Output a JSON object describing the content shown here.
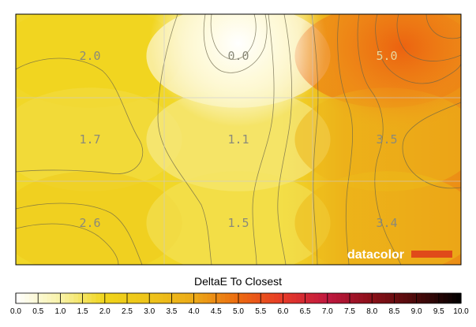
{
  "chart_data": {
    "type": "heatmap",
    "title": "DeltaE To Closest",
    "rows": 3,
    "cols": 3,
    "values": [
      [
        2.0,
        0.0,
        5.0
      ],
      [
        1.7,
        1.1,
        3.5
      ],
      [
        2.6,
        1.5,
        3.4
      ]
    ],
    "labels": [
      [
        "2.0",
        "0.0",
        "5.0"
      ],
      [
        "1.7",
        "1.1",
        "3.5"
      ],
      [
        "2.6",
        "1.5",
        "3.4"
      ]
    ],
    "colorbar": {
      "range": [
        0,
        10
      ],
      "ticks": [
        "0.0",
        "0.5",
        "1.0",
        "1.5",
        "2.0",
        "2.5",
        "3.0",
        "3.5",
        "4.0",
        "4.5",
        "5.0",
        "5.5",
        "6.0",
        "6.5",
        "7.0",
        "7.5",
        "8.0",
        "8.5",
        "9.0",
        "9.5",
        "10.0"
      ],
      "stops": [
        {
          "v": 0.0,
          "c": "#ffffff"
        },
        {
          "v": 1.0,
          "c": "#f8f2a8"
        },
        {
          "v": 2.0,
          "c": "#f0d41a"
        },
        {
          "v": 3.0,
          "c": "#eec41a"
        },
        {
          "v": 4.0,
          "c": "#ecaa18"
        },
        {
          "v": 5.0,
          "c": "#ec6a10"
        },
        {
          "v": 6.0,
          "c": "#e63a28"
        },
        {
          "v": 7.0,
          "c": "#c01840"
        },
        {
          "v": 8.0,
          "c": "#8a1018"
        },
        {
          "v": 9.0,
          "c": "#4a0a0a"
        },
        {
          "v": 10.0,
          "c": "#000000"
        }
      ]
    },
    "brand_text": "datacolor",
    "brand_color": "#e04a1a"
  }
}
